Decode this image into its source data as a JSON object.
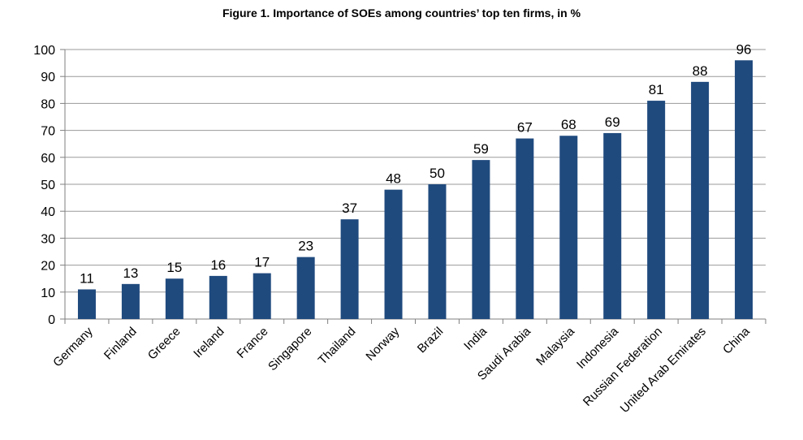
{
  "chart_data": {
    "type": "bar",
    "title": "Figure 1. Importance of SOEs among countries’ top ten firms, in %",
    "categories": [
      "Germany",
      "Finland",
      "Greece",
      "Ireland",
      "France",
      "Singapore",
      "Thailand",
      "Norway",
      "Brazil",
      "India",
      "Saudi Arabia",
      "Malaysia",
      "Indonesia",
      "Russian Federation",
      "United Arab Emirates",
      "China"
    ],
    "values": [
      11,
      13,
      15,
      16,
      17,
      23,
      37,
      48,
      50,
      59,
      67,
      68,
      69,
      81,
      88,
      96
    ],
    "data_labels": [
      "11",
      "13",
      "15",
      "16",
      "17",
      "23",
      "37",
      "48",
      "50",
      "59",
      "67",
      "68",
      "69",
      "81",
      "88",
      "96"
    ],
    "ylim": [
      0,
      100
    ],
    "yticks": [
      0,
      10,
      20,
      30,
      40,
      50,
      60,
      70,
      80,
      90,
      100
    ],
    "xlabel": "",
    "ylabel": "",
    "grid": true,
    "colors": {
      "bar": "#1f4a7e",
      "grid": "#9a9a9a",
      "axis": "#7f7f7f"
    }
  }
}
